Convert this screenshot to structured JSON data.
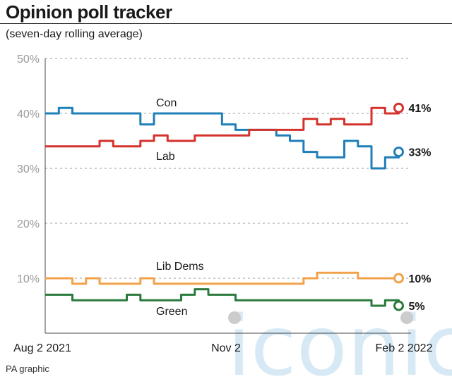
{
  "header": {
    "title": "Opinion poll tracker",
    "subtitle": "(seven-day rolling average)",
    "credit": "PA graphic"
  },
  "watermark": {
    "text": "iconic",
    "color": "#cfe6f3"
  },
  "chart_data": {
    "type": "line",
    "title": "Opinion poll tracker",
    "subtitle": "(seven-day rolling average)",
    "xlabel": "",
    "ylabel": "",
    "x_ticks": [
      "Aug 2 2021",
      "Nov 2",
      "Feb 2 2022"
    ],
    "x_range": [
      "2021-08-02",
      "2022-02-02"
    ],
    "ylim": [
      0,
      50
    ],
    "y_ticks": [
      10,
      20,
      30,
      40,
      50
    ],
    "y_tick_labels": [
      "10%",
      "20%",
      "30%",
      "40%",
      "50%"
    ],
    "grid": "horizontal-dashed",
    "x": [
      "2021-08-02",
      "2021-08-09",
      "2021-08-16",
      "2021-08-23",
      "2021-08-30",
      "2021-09-06",
      "2021-09-13",
      "2021-09-20",
      "2021-09-27",
      "2021-10-04",
      "2021-10-11",
      "2021-10-18",
      "2021-10-25",
      "2021-11-01",
      "2021-11-08",
      "2021-11-15",
      "2021-11-22",
      "2021-11-29",
      "2021-12-06",
      "2021-12-13",
      "2021-12-20",
      "2021-12-27",
      "2022-01-03",
      "2022-01-10",
      "2022-01-17",
      "2022-01-24",
      "2022-01-31"
    ],
    "series": [
      {
        "name": "Con",
        "color": "#1f7fb8",
        "end_label": "33%",
        "values": [
          40,
          41,
          40,
          40,
          40,
          40,
          40,
          38,
          40,
          40,
          40,
          40,
          40,
          38,
          37,
          37,
          37,
          36,
          35,
          33,
          32,
          32,
          35,
          34,
          30,
          32,
          33
        ]
      },
      {
        "name": "Lab",
        "color": "#d4322c",
        "end_label": "41%",
        "values": [
          34,
          34,
          34,
          34,
          35,
          34,
          34,
          35,
          36,
          35,
          35,
          36,
          36,
          36,
          36,
          37,
          37,
          37,
          37,
          39,
          38,
          39,
          38,
          38,
          41,
          40,
          41
        ]
      },
      {
        "name": "Lib Dems",
        "color": "#f2a24a",
        "end_label": "10%",
        "values": [
          10,
          10,
          9,
          10,
          9,
          9,
          9,
          10,
          9,
          9,
          9,
          9,
          9,
          9,
          9,
          9,
          9,
          9,
          9,
          10,
          11,
          11,
          11,
          10,
          10,
          10,
          10
        ]
      },
      {
        "name": "Green",
        "color": "#2a7a3c",
        "end_label": "5%",
        "values": [
          7,
          7,
          6,
          6,
          6,
          6,
          7,
          6,
          6,
          6,
          7,
          8,
          7,
          7,
          6,
          6,
          6,
          6,
          6,
          6,
          6,
          6,
          6,
          6,
          5,
          6,
          5
        ]
      }
    ]
  }
}
